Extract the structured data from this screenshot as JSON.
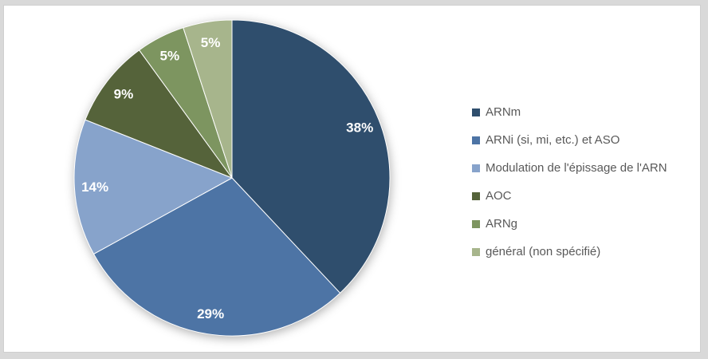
{
  "window": {
    "background": "#FFFFFF",
    "frame_color": "#D9D9D9",
    "border_color": "#CFCFCF"
  },
  "chart_data": {
    "type": "pie",
    "title": "",
    "categories": [
      "ARNm",
      "ARNi (si, mi, etc.) et ASO",
      "Modulation de l'épissage de l'ARN",
      "AOC",
      "ARNg",
      "général (non spécifié)"
    ],
    "values": [
      38,
      29,
      14,
      9,
      5,
      5
    ],
    "data_labels": [
      "38%",
      "29%",
      "14%",
      "9%",
      "5%",
      "5%"
    ],
    "colors": [
      "#2F4E6D",
      "#4D74A5",
      "#87A3CB",
      "#55633A",
      "#7D9560",
      "#A7B58C"
    ],
    "start_angle_deg": 0,
    "direction": "clockwise",
    "legend_position": "right",
    "legend_text_color": "#595959",
    "label_text_color": "#FFFFFF"
  }
}
